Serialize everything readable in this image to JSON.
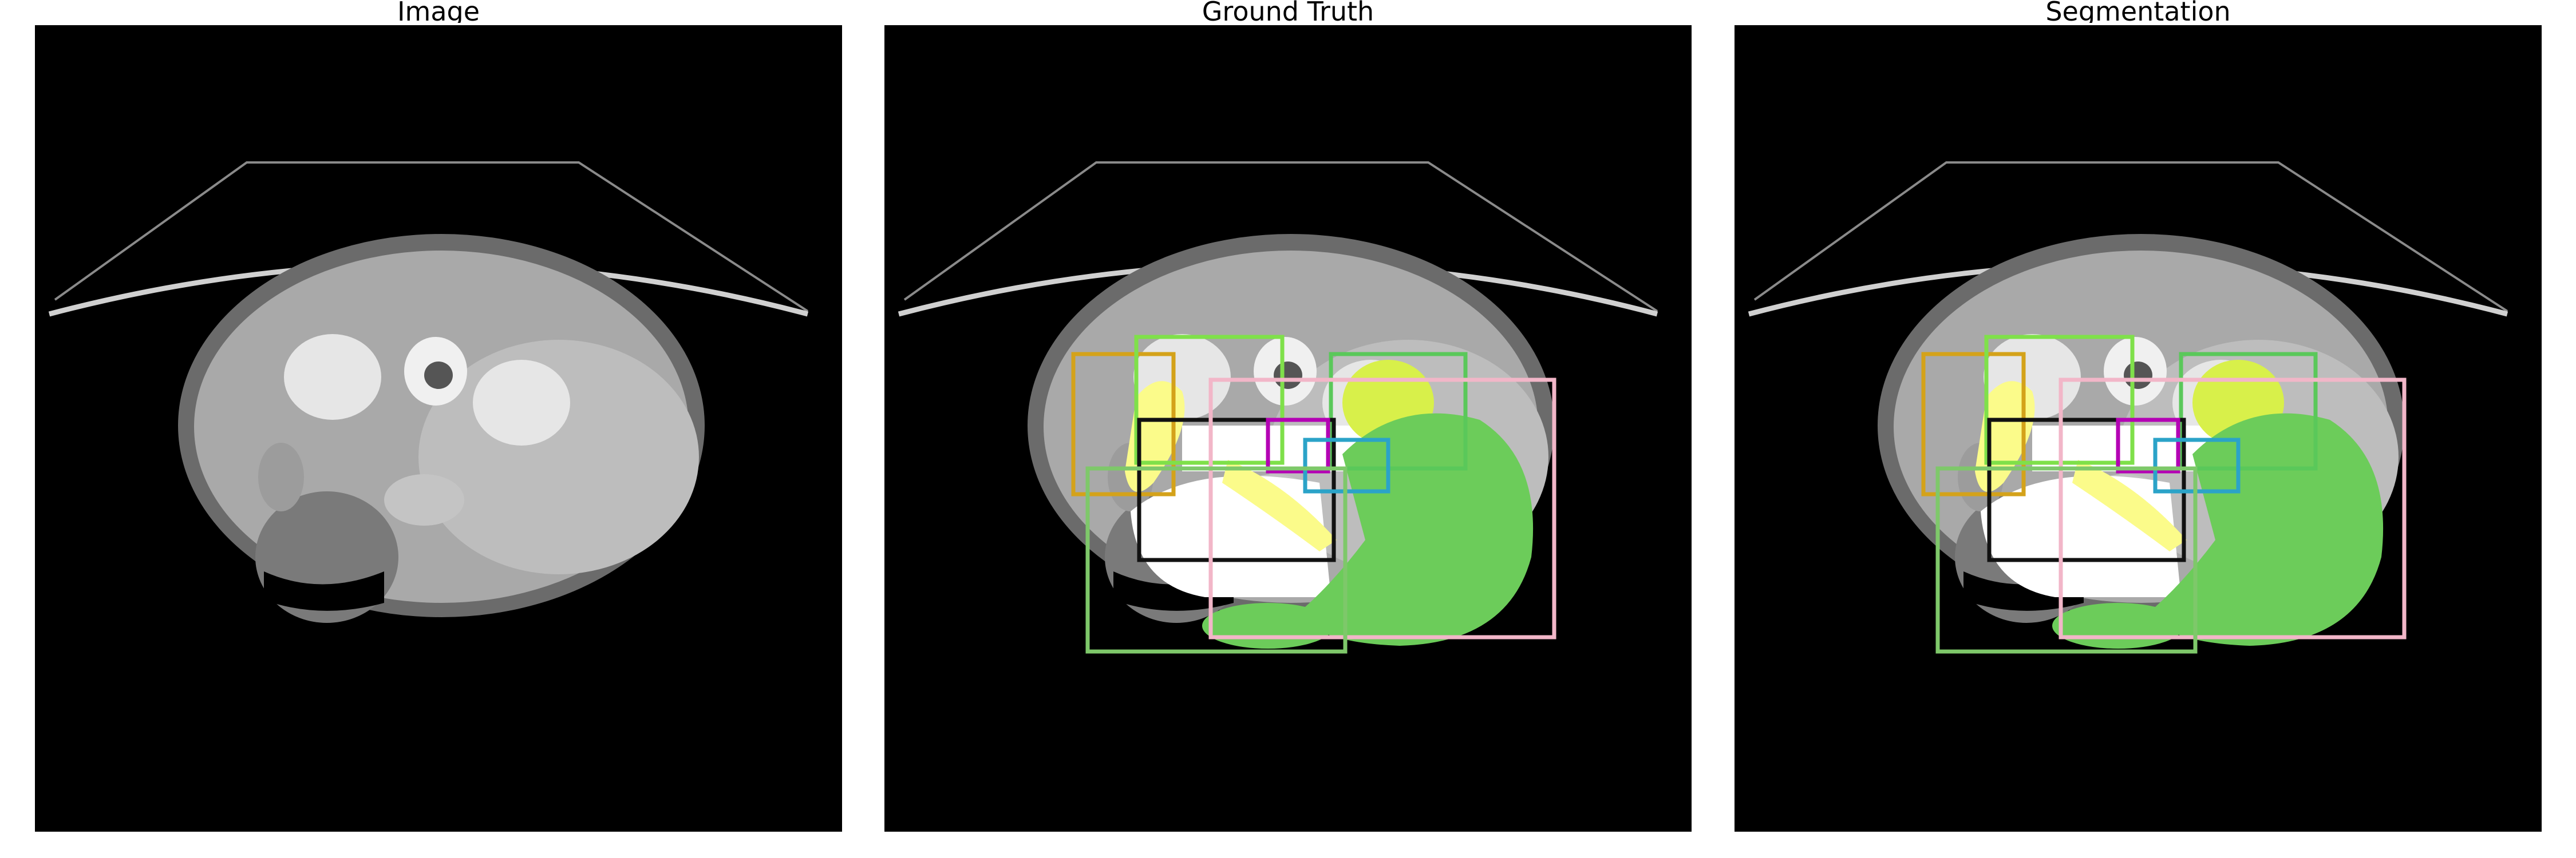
{
  "figure": {
    "panels": [
      {
        "title": "Image",
        "overlay": false,
        "show_regions": false
      },
      {
        "title": "Ground Truth",
        "overlay": true,
        "show_regions": true
      },
      {
        "title": "Segmentation",
        "overlay": true,
        "show_regions": true
      }
    ]
  },
  "colors": {
    "background": "#000000",
    "body_outer": "#6b6b6b",
    "body_inner": "#a9a9a9",
    "liver": "#bdbdbd",
    "spleen_box": "#d4a21a",
    "box_green": "#7fe04a",
    "box_green_2": "#5ac85a",
    "box_black": "#111111",
    "box_magenta": "#b400b4",
    "box_cyan": "#2ba3c8",
    "box_pink": "#f2b6c8",
    "box_green_3": "#7ec86a",
    "mask_white": "#ffffff",
    "mask_yellow": "#fbfb8a",
    "mask_lime": "#d8f04a",
    "mask_green": "#6ccc5a"
  }
}
